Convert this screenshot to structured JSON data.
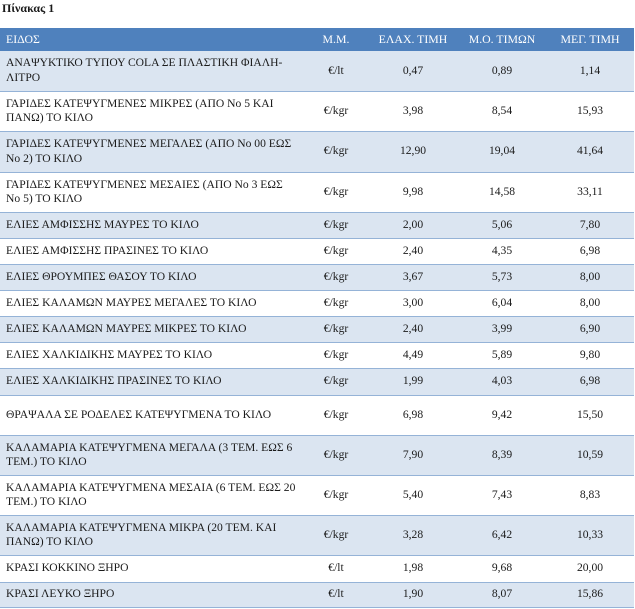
{
  "caption": "Πίνακας 1",
  "columns": [
    "ΕΙΔΟΣ",
    "Μ.Μ.",
    "ΕΛΑΧ. ΤΙΜΗ",
    "Μ.Ο. ΤΙΜΩΝ",
    "ΜΕΓ. ΤΙΜΗ"
  ],
  "rows": [
    {
      "name": "ΑΝΑΨΥΚΤΙΚΟ ΤΥΠΟΥ COLA ΣΕ ΠΛΑΣΤΙΚΗ ΦΙΑΛΗ-ΛΙΤΡΟ",
      "unit": "€/lt",
      "min": "0,47",
      "avg": "0,89",
      "max": "1,14"
    },
    {
      "name": "ΓΑΡΙΔΕΣ ΚΑΤΕΨΥΓΜΕΝΕΣ ΜΙΚΡΕΣ (ΑΠΟ Νο 5 ΚΑΙ ΠΑΝΩ) ΤΟ ΚΙΛΟ",
      "unit": "€/kgr",
      "min": "3,98",
      "avg": "8,54",
      "max": "15,93"
    },
    {
      "name": "ΓΑΡΙΔΕΣ ΚΑΤΕΨΥΓΜΕΝΕΣ ΜΕΓΑΛΕΣ (ΑΠΟ Νο 00 ΕΩΣ Νο 2) ΤΟ ΚΙΛΟ",
      "unit": "€/kgr",
      "min": "12,90",
      "avg": "19,04",
      "max": "41,64"
    },
    {
      "name": "ΓΑΡΙΔΕΣ ΚΑΤΕΨΥΓΜΕΝΕΣ ΜΕΣΑΙΕΣ (ΑΠΟ Νο 3 ΕΩΣ Νο 5) ΤΟ ΚΙΛΟ",
      "unit": "€/kgr",
      "min": "9,98",
      "avg": "14,58",
      "max": "33,11"
    },
    {
      "name": "ΕΛΙΕΣ ΑΜΦΙΣΣΗΣ ΜΑΥΡΕΣ ΤΟ ΚΙΛΟ",
      "unit": "€/kgr",
      "min": "2,00",
      "avg": "5,06",
      "max": "7,80"
    },
    {
      "name": "ΕΛΙΕΣ ΑΜΦΙΣΣΗΣ ΠΡΑΣΙΝΕΣ ΤΟ ΚΙΛΟ",
      "unit": "€/kgr",
      "min": "2,40",
      "avg": "4,35",
      "max": "6,98"
    },
    {
      "name": "ΕΛΙΕΣ ΘΡΟΥΜΠΕΣ ΘΑΣΟΥ ΤΟ ΚΙΛΟ",
      "unit": "€/kgr",
      "min": "3,67",
      "avg": "5,73",
      "max": "8,00"
    },
    {
      "name": "ΕΛΙΕΣ ΚΑΛΑΜΩΝ ΜΑΥΡΕΣ ΜΕΓΑΛΕΣ ΤΟ ΚΙΛΟ",
      "unit": "€/kgr",
      "min": "3,00",
      "avg": "6,04",
      "max": "8,00"
    },
    {
      "name": "ΕΛΙΕΣ ΚΑΛΑΜΩΝ ΜΑΥΡΕΣ ΜΙΚΡΕΣ ΤΟ ΚΙΛΟ",
      "unit": "€/kgr",
      "min": "2,40",
      "avg": "3,99",
      "max": "6,90"
    },
    {
      "name": "ΕΛΙΕΣ ΧΑΛΚΙΔΙΚΗΣ ΜΑΥΡΕΣ ΤΟ ΚΙΛΟ",
      "unit": "€/kgr",
      "min": "4,49",
      "avg": "5,89",
      "max": "9,80"
    },
    {
      "name": "ΕΛΙΕΣ ΧΑΛΚΙΔΙΚΗΣ ΠΡΑΣΙΝΕΣ ΤΟ ΚΙΛΟ",
      "unit": "€/kgr",
      "min": "1,99",
      "avg": "4,03",
      "max": "6,98"
    },
    {
      "name": "ΘΡΑΨΑΛΑ ΣΕ ΡΟΔΕΛΕΣ ΚΑΤΕΨΥΓΜΕΝΑ ΤΟ ΚΙΛΟ",
      "unit": "€/kgr",
      "min": "6,98",
      "avg": "9,42",
      "max": "15,50"
    },
    {
      "name": "ΚΑΛΑΜΑΡΙΑ ΚΑΤΕΨΥΓΜΕΝΑ ΜΕΓΑΛΑ (3 ΤΕΜ. ΕΩΣ 6 ΤΕΜ.) ΤΟ ΚΙΛΟ",
      "unit": "€/kgr",
      "min": "7,90",
      "avg": "8,39",
      "max": "10,59"
    },
    {
      "name": "ΚΑΛΑΜΑΡΙΑ ΚΑΤΕΨΥΓΜΕΝΑ ΜΕΣΑΙΑ (6 ΤΕΜ. ΕΩΣ 20 ΤΕΜ.) ΤΟ ΚΙΛΟ",
      "unit": "€/kgr",
      "min": "5,40",
      "avg": "7,43",
      "max": "8,83"
    },
    {
      "name": "ΚΑΛΑΜΑΡΙΑ ΚΑΤΕΨΥΓΜΕΝΑ ΜΙΚΡΑ (20 ΤΕΜ. ΚΑΙ ΠΑΝΩ) ΤΟ ΚΙΛΟ",
      "unit": "€/kgr",
      "min": "3,28",
      "avg": "6,42",
      "max": "10,33"
    },
    {
      "name": "ΚΡΑΣΙ ΚΟΚΚΙΝΟ ΞΗΡΟ",
      "unit": "€/lt",
      "min": "1,98",
      "avg": "9,68",
      "max": "20,00"
    },
    {
      "name": "ΚΡΑΣΙ ΛΕΥΚΟ ΞΗΡΟ",
      "unit": "€/lt",
      "min": "1,90",
      "avg": "8,07",
      "max": "15,86"
    }
  ],
  "colors": {
    "header_bg": "#4f81bd",
    "band_bg": "#dbe5f1",
    "rule": "#95b3d7"
  }
}
